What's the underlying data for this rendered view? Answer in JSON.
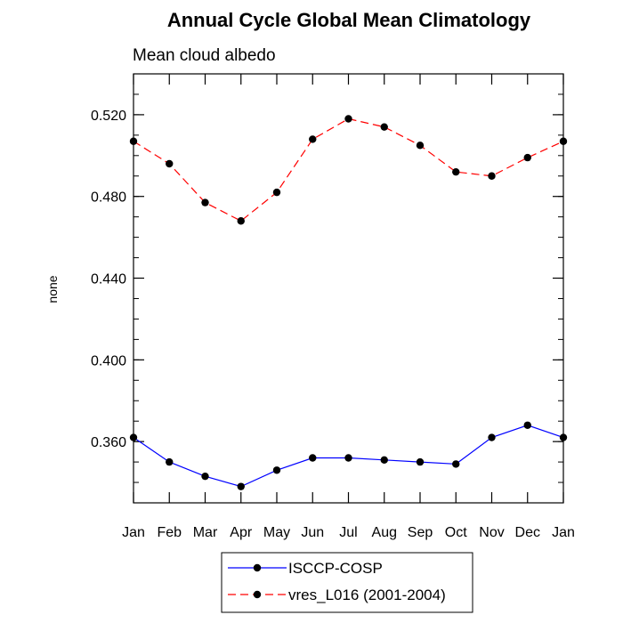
{
  "chart_data": {
    "type": "line",
    "title": "Annual Cycle Global Mean Climatology",
    "subtitle": "Mean cloud albedo",
    "xlabel": "",
    "ylabel": "none",
    "categories": [
      "Jan",
      "Feb",
      "Mar",
      "Apr",
      "May",
      "Jun",
      "Jul",
      "Aug",
      "Sep",
      "Oct",
      "Nov",
      "Dec",
      "Jan"
    ],
    "ylim": [
      0.33,
      0.54
    ],
    "yticks": [
      0.36,
      0.4,
      0.44,
      0.48,
      0.52
    ],
    "ytick_labels": [
      "0.360",
      "0.400",
      "0.440",
      "0.480",
      "0.520"
    ],
    "grid": false,
    "legend_position": "bottom-center",
    "series": [
      {
        "name": "ISCCP-COSP",
        "color": "#0000ff",
        "line_style": "solid",
        "marker": "filled-circle",
        "values": [
          0.362,
          0.35,
          0.343,
          0.338,
          0.346,
          0.352,
          0.352,
          0.351,
          0.35,
          0.349,
          0.362,
          0.368,
          0.362
        ]
      },
      {
        "name": "vres_L016 (2001-2004)",
        "color": "#ff0000",
        "line_style": "dashed",
        "marker": "filled-circle",
        "values": [
          0.507,
          0.496,
          0.477,
          0.468,
          0.482,
          0.508,
          0.518,
          0.514,
          0.505,
          0.492,
          0.49,
          0.499,
          0.507
        ]
      }
    ]
  }
}
